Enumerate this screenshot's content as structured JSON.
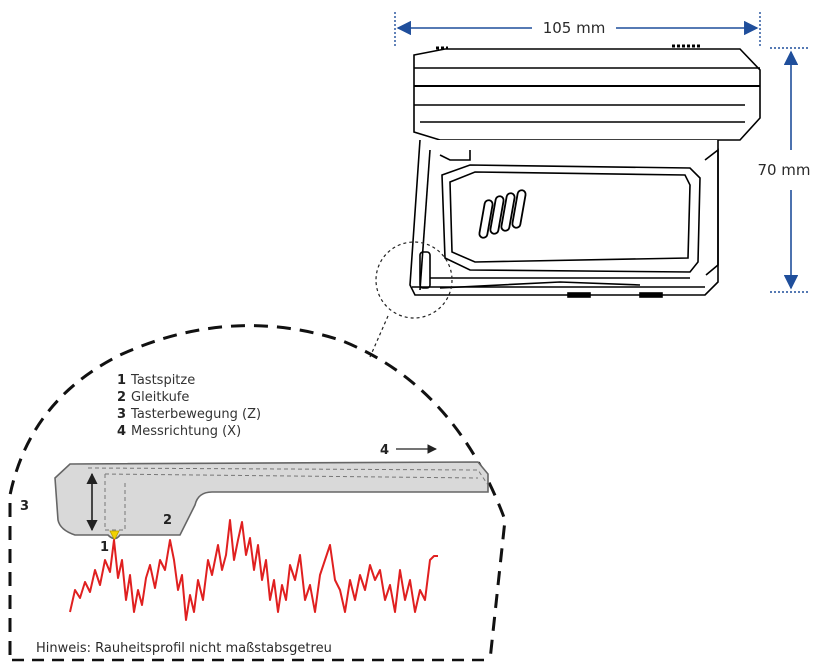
{
  "dimensions": {
    "width_label": "105 mm",
    "height_label": "70 mm"
  },
  "legend": {
    "items": [
      {
        "num": "1",
        "label": "Tastspitze"
      },
      {
        "num": "2",
        "label": "Gleitkufe"
      },
      {
        "num": "3",
        "label": "Tasterbewegung (Z)"
      },
      {
        "num": "4",
        "label": "Messrichtung (X)"
      }
    ]
  },
  "callouts": {
    "tip": "1",
    "skid": "2",
    "stroke": "3",
    "direction": "4"
  },
  "note": "Hinweis: Rauheitsprofil nicht maßstabsgetreu",
  "colors": {
    "dimension_arrow": "#1f4e9b",
    "profile": "#e02020",
    "stylus_fill": "#d9d9d9",
    "stylus_tip": "#f2d200",
    "device_outline": "#000000"
  },
  "icons": [
    "dimension-arrow-icon",
    "detail-circle-icon",
    "direction-arrow-icon"
  ]
}
